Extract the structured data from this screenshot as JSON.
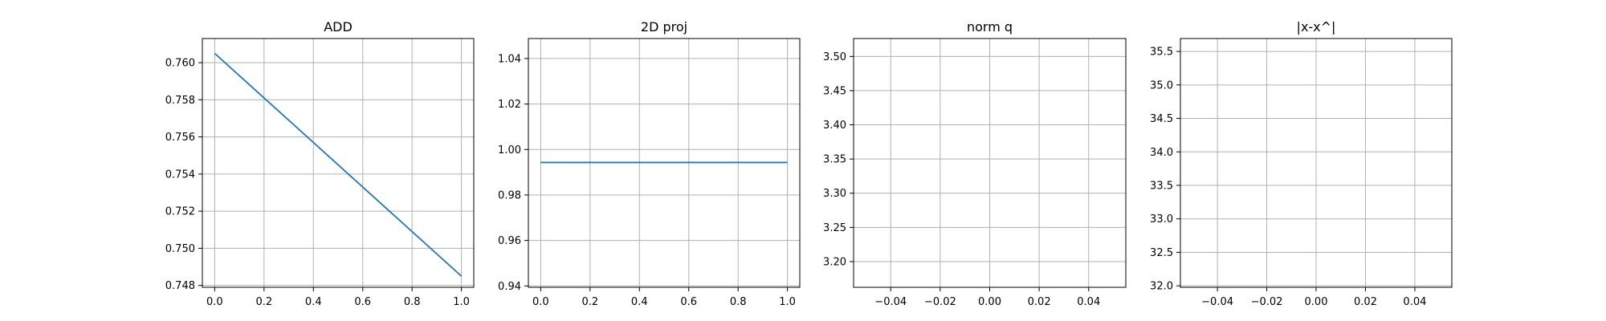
{
  "colors": {
    "series": "#1f77b4",
    "grid": "#b0b0b0",
    "frame": "#000000"
  },
  "chart_data": [
    {
      "type": "line",
      "title": "ADD",
      "xlabel": "",
      "ylabel": "",
      "grid": true,
      "xlim": [
        -0.05,
        1.05
      ],
      "ylim": [
        0.7479,
        0.7613
      ],
      "xticks": [
        0.0,
        0.2,
        0.4,
        0.6,
        0.8,
        1.0
      ],
      "xtick_labels": [
        "0.0",
        "0.2",
        "0.4",
        "0.6",
        "0.8",
        "1.0"
      ],
      "yticks": [
        0.748,
        0.75,
        0.752,
        0.754,
        0.756,
        0.758,
        0.76
      ],
      "ytick_labels": [
        "0.748",
        "0.750",
        "0.752",
        "0.754",
        "0.756",
        "0.758",
        "0.760"
      ],
      "series": [
        {
          "x": [
            0.0,
            1.0
          ],
          "y": [
            0.7605,
            0.7485
          ]
        }
      ]
    },
    {
      "type": "line",
      "title": "2D proj",
      "xlabel": "",
      "ylabel": "",
      "grid": true,
      "xlim": [
        -0.05,
        1.05
      ],
      "ylim": [
        0.9394,
        1.0488
      ],
      "xticks": [
        0.0,
        0.2,
        0.4,
        0.6,
        0.8,
        1.0
      ],
      "xtick_labels": [
        "0.0",
        "0.2",
        "0.4",
        "0.6",
        "0.8",
        "1.0"
      ],
      "yticks": [
        0.94,
        0.96,
        0.98,
        1.0,
        1.02,
        1.04
      ],
      "ytick_labels": [
        "0.94",
        "0.96",
        "0.98",
        "1.00",
        "1.02",
        "1.04"
      ],
      "series": [
        {
          "x": [
            0.0,
            1.0
          ],
          "y": [
            0.9943,
            0.9943
          ]
        }
      ]
    },
    {
      "type": "line",
      "title": "norm q",
      "xlabel": "",
      "ylabel": "",
      "grid": true,
      "xlim": [
        -0.055,
        0.055
      ],
      "ylim": [
        3.1624,
        3.5262
      ],
      "xticks": [
        -0.04,
        -0.02,
        0.0,
        0.02,
        0.04
      ],
      "xtick_labels": [
        "−0.04",
        "−0.02",
        "0.00",
        "0.02",
        "0.04"
      ],
      "yticks": [
        3.2,
        3.25,
        3.3,
        3.35,
        3.4,
        3.45,
        3.5
      ],
      "ytick_labels": [
        "3.20",
        "3.25",
        "3.30",
        "3.35",
        "3.40",
        "3.45",
        "3.50"
      ],
      "series": []
    },
    {
      "type": "line",
      "title": "|x-x^|",
      "xlabel": "",
      "ylabel": "",
      "grid": true,
      "xlim": [
        -0.055,
        0.055
      ],
      "ylim": [
        31.978,
        35.693
      ],
      "xticks": [
        -0.04,
        -0.02,
        0.0,
        0.02,
        0.04
      ],
      "xtick_labels": [
        "−0.04",
        "−0.02",
        "0.00",
        "0.02",
        "0.04"
      ],
      "yticks": [
        32.0,
        32.5,
        33.0,
        33.5,
        34.0,
        34.5,
        35.0,
        35.5
      ],
      "ytick_labels": [
        "32.0",
        "32.5",
        "33.0",
        "33.5",
        "34.0",
        "34.5",
        "35.0",
        "35.5"
      ],
      "series": []
    }
  ]
}
